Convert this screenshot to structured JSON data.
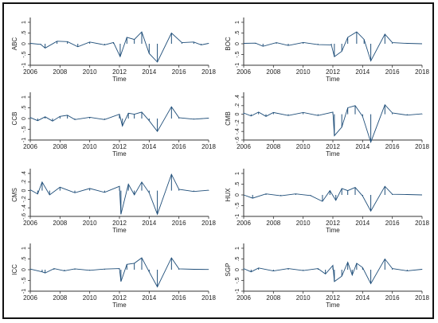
{
  "chart_data": [
    {
      "type": "line",
      "ylabel": "ABC",
      "xlabel": "Time",
      "xlim": [
        2006,
        2018
      ],
      "ylim": [
        -1,
        1
      ],
      "xticks": [
        "2006",
        "2008",
        "2010",
        "2012",
        "2014",
        "2016",
        "2018"
      ],
      "yticks": [
        "-1",
        "-.5",
        "0",
        ".5",
        "1"
      ],
      "series": [
        {
          "x": [
            2006.0,
            2006.7,
            2007.0,
            2007.8,
            2008.5,
            2009.2,
            2010.0,
            2011.0,
            2011.6,
            2012.05,
            2012.5,
            2013.0,
            2013.5,
            2014.0,
            2014.55,
            2015.5,
            2016.2,
            2017.0,
            2017.5,
            2018.0
          ],
          "y": [
            0.02,
            -0.03,
            -0.2,
            0.12,
            0.1,
            -0.14,
            0.08,
            -0.05,
            0.06,
            -0.6,
            0.3,
            0.2,
            0.55,
            -0.45,
            -0.85,
            0.5,
            0.05,
            0.08,
            -0.05,
            0.02
          ]
        }
      ]
    },
    {
      "type": "line",
      "ylabel": "BOC",
      "xlabel": "Time",
      "xlim": [
        2006,
        2018
      ],
      "ylim": [
        -1,
        1
      ],
      "xticks": [
        "2006",
        "2008",
        "2010",
        "2012",
        "2014",
        "2016",
        "2018"
      ],
      "yticks": [
        "-1",
        "-.5",
        "0",
        ".5",
        "1"
      ],
      "series": [
        {
          "x": [
            2006.0,
            2006.8,
            2007.3,
            2008.2,
            2009.0,
            2010.0,
            2011.0,
            2011.9,
            2012.1,
            2012.6,
            2013.0,
            2013.6,
            2014.1,
            2014.55,
            2015.5,
            2016.0,
            2017.0,
            2018.0
          ],
          "y": [
            0.02,
            0.03,
            -0.12,
            0.05,
            -0.08,
            0.06,
            -0.04,
            -0.05,
            -0.6,
            -0.35,
            0.3,
            0.55,
            0.2,
            -0.8,
            0.45,
            0.05,
            0.02,
            0.0
          ]
        }
      ]
    },
    {
      "type": "line",
      "ylabel": "CCB",
      "xlabel": "Time",
      "xlim": [
        2006,
        2018
      ],
      "ylim": [
        -1,
        1
      ],
      "xticks": [
        "2006",
        "2008",
        "2010",
        "2012",
        "2014",
        "2016",
        "2018"
      ],
      "yticks": [
        "-1",
        "-.5",
        "0",
        ".5",
        "1"
      ],
      "series": [
        {
          "x": [
            2006.0,
            2006.5,
            2007.0,
            2007.5,
            2008.0,
            2008.5,
            2009.0,
            2010.0,
            2011.0,
            2012.0,
            2012.2,
            2012.6,
            2013.0,
            2013.5,
            2014.0,
            2014.55,
            2015.5,
            2016.0,
            2017.0,
            2018.0
          ],
          "y": [
            0.05,
            -0.1,
            0.08,
            -0.12,
            0.1,
            0.15,
            -0.05,
            0.06,
            -0.05,
            0.2,
            -0.35,
            0.25,
            0.2,
            0.3,
            -0.1,
            -0.6,
            0.55,
            0.04,
            -0.03,
            0.02
          ]
        }
      ]
    },
    {
      "type": "line",
      "ylabel": "CMB",
      "xlabel": "Time",
      "xlim": [
        2006,
        2018
      ],
      "ylim": [
        -0.6,
        0.4
      ],
      "xticks": [
        "2006",
        "2008",
        "2010",
        "2012",
        "2014",
        "2016",
        "2018"
      ],
      "yticks": [
        "-.6",
        "-.4",
        "-.2",
        "0",
        ".2",
        ".4"
      ],
      "series": [
        {
          "x": [
            2006.0,
            2006.5,
            2007.0,
            2007.5,
            2008.0,
            2009.0,
            2010.0,
            2011.0,
            2012.0,
            2012.1,
            2012.6,
            2013.0,
            2013.5,
            2014.0,
            2014.55,
            2015.5,
            2016.0,
            2017.0,
            2018.0
          ],
          "y": [
            0.03,
            -0.04,
            0.05,
            -0.05,
            0.04,
            -0.03,
            0.04,
            -0.03,
            0.05,
            -0.5,
            -0.3,
            0.15,
            0.2,
            -0.05,
            -0.65,
            0.22,
            0.03,
            -0.02,
            0.01
          ]
        }
      ]
    },
    {
      "type": "line",
      "ylabel": "CMS",
      "xlabel": "Time",
      "xlim": [
        2006,
        2018
      ],
      "ylim": [
        -0.6,
        0.4
      ],
      "xticks": [
        "2006",
        "2008",
        "2010",
        "2012",
        "2014",
        "2016",
        "2018"
      ],
      "yticks": [
        "-.6",
        "-.4",
        "-.2",
        "0",
        ".2",
        ".4"
      ],
      "series": [
        {
          "x": [
            2006.0,
            2006.5,
            2006.8,
            2007.3,
            2008.0,
            2009.0,
            2010.0,
            2011.0,
            2012.0,
            2012.1,
            2012.6,
            2013.0,
            2013.5,
            2014.0,
            2014.55,
            2015.5,
            2016.0,
            2017.0,
            2018.0
          ],
          "y": [
            0.02,
            -0.08,
            0.2,
            -0.1,
            0.08,
            -0.05,
            0.05,
            -0.04,
            0.1,
            -0.55,
            0.15,
            -0.1,
            0.2,
            -0.05,
            -0.55,
            0.38,
            0.03,
            -0.02,
            0.01
          ]
        }
      ]
    },
    {
      "type": "line",
      "ylabel": "HUX",
      "xlabel": "Time",
      "xlim": [
        2006,
        2018
      ],
      "ylim": [
        -1,
        1
      ],
      "xticks": [
        "2006",
        "2008",
        "2010",
        "2012",
        "2014",
        "2016",
        "2018"
      ],
      "yticks": [
        "-1",
        "-.5",
        "0",
        ".5",
        "1"
      ],
      "series": [
        {
          "x": [
            2006.0,
            2006.6,
            2007.5,
            2008.5,
            2009.5,
            2010.5,
            2011.3,
            2011.8,
            2012.2,
            2012.6,
            2013.0,
            2013.5,
            2014.0,
            2014.55,
            2015.5,
            2016.0,
            2017.0,
            2018.0
          ],
          "y": [
            0.0,
            -0.15,
            0.05,
            -0.04,
            0.05,
            -0.03,
            -0.3,
            0.2,
            -0.25,
            0.3,
            0.2,
            0.35,
            -0.05,
            -0.75,
            0.4,
            0.03,
            0.02,
            0.0
          ]
        }
      ]
    },
    {
      "type": "line",
      "ylabel": "ICC",
      "xlabel": "Time",
      "xlim": [
        2006,
        2018
      ],
      "ylim": [
        -1,
        1
      ],
      "xticks": [
        "2006",
        "2008",
        "2010",
        "2012",
        "2014",
        "2016",
        "2018"
      ],
      "yticks": [
        "-1",
        "-.5",
        "0",
        ".5",
        "1"
      ],
      "series": [
        {
          "x": [
            2006.0,
            2006.8,
            2007.0,
            2007.6,
            2008.3,
            2009.0,
            2010.0,
            2011.0,
            2012.0,
            2012.1,
            2012.5,
            2013.0,
            2013.5,
            2014.0,
            2014.55,
            2015.5,
            2016.0,
            2017.0,
            2018.0
          ],
          "y": [
            0.03,
            -0.1,
            -0.15,
            0.05,
            -0.05,
            0.04,
            -0.03,
            0.03,
            0.05,
            -0.55,
            0.25,
            0.3,
            0.55,
            -0.1,
            -0.8,
            0.55,
            0.04,
            0.02,
            0.01
          ]
        }
      ]
    },
    {
      "type": "line",
      "ylabel": "SGP",
      "xlabel": "Time",
      "xlim": [
        2006,
        2018
      ],
      "ylim": [
        -1,
        1
      ],
      "xticks": [
        "2006",
        "2008",
        "2010",
        "2012",
        "2014",
        "2016",
        "2018"
      ],
      "yticks": [
        "-1",
        "-.5",
        "0",
        ".5",
        "1"
      ],
      "series": [
        {
          "x": [
            2006.0,
            2006.5,
            2007.0,
            2008.0,
            2009.0,
            2010.0,
            2011.0,
            2011.5,
            2012.0,
            2012.1,
            2012.6,
            2013.0,
            2013.3,
            2013.6,
            2014.0,
            2014.55,
            2015.5,
            2016.0,
            2017.0,
            2018.0
          ],
          "y": [
            0.05,
            -0.1,
            0.08,
            -0.06,
            0.05,
            -0.04,
            0.05,
            -0.2,
            0.2,
            -0.55,
            -0.3,
            0.35,
            -0.25,
            0.3,
            0.1,
            -0.65,
            0.5,
            0.05,
            -0.05,
            0.02
          ]
        }
      ]
    }
  ]
}
